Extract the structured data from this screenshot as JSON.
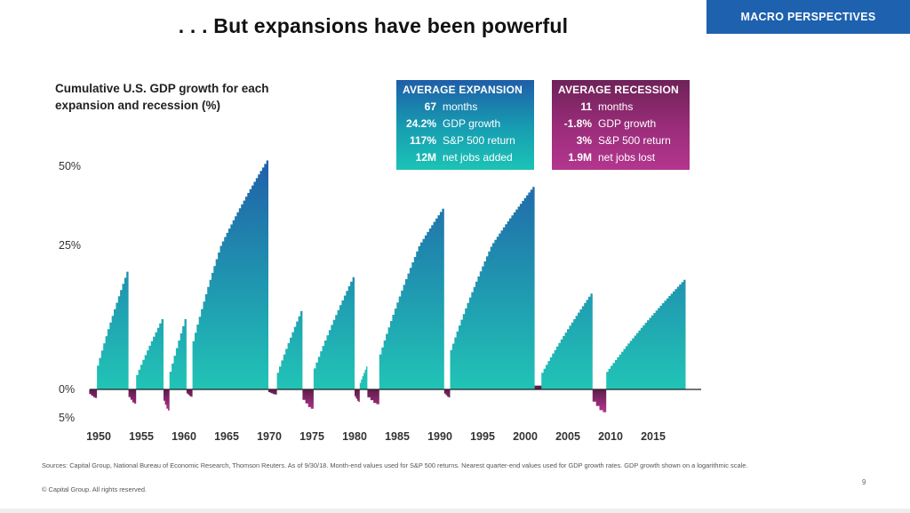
{
  "title": ". . . But expansions have been powerful",
  "brand": "MACRO PERSPECTIVES",
  "page_number": "9",
  "footnote": "Sources: Capital Group, National Bureau of Economic Research, Thomson Reuters. As of 9/30/18. Month-end values used for S&P 500 returns. Nearest quarter-end values used for GDP growth rates. GDP growth shown on a logarithmic scale.",
  "copyright": "© Capital Group. All rights reserved.",
  "expansion_box": {
    "heading": "AVERAGE EXPANSION",
    "rows": [
      {
        "value": "67",
        "label": "months"
      },
      {
        "value": "24.2%",
        "label": "GDP growth"
      },
      {
        "value": "117%",
        "label": "S&P 500 return"
      },
      {
        "value": "12M",
        "label": "net jobs added"
      }
    ]
  },
  "recession_box": {
    "heading": "AVERAGE RECESSION",
    "rows": [
      {
        "value": "11",
        "label": "months"
      },
      {
        "value": "-1.8%",
        "label": "GDP growth"
      },
      {
        "value": "3%",
        "label": "S&P 500 return"
      },
      {
        "value": "1.9M",
        "label": "net jobs lost"
      }
    ]
  },
  "colors": {
    "expansion_top": "#1f5ea8",
    "expansion_bottom": "#21c4b6",
    "recession_top": "#5e1c4c",
    "recession_bottom": "#b0358a",
    "brand": "#1e61ae"
  },
  "chart_data": {
    "type": "area",
    "subtitle": "Cumulative U.S. GDP growth for each expansion and recession (%)",
    "scale": "log",
    "ylim": [
      -5,
      50
    ],
    "y_ticks": [
      {
        "value": 50,
        "label": "50%"
      },
      {
        "value": 25,
        "label": "25%"
      },
      {
        "value": 0,
        "label": "0%"
      },
      {
        "value": -5,
        "label": "5%"
      }
    ],
    "x_ticks": [
      1950,
      1955,
      1960,
      1965,
      1970,
      1975,
      1980,
      1985,
      1990,
      1995,
      2000,
      2005,
      2010,
      2015
    ],
    "xlim": [
      1948,
      2020
    ],
    "axis_note": "time in years",
    "expansions": [
      {
        "start": 1949.8,
        "end": 1953.5,
        "peak": 20.0
      },
      {
        "start": 1954.4,
        "end": 1957.6,
        "peak": 11.5
      },
      {
        "start": 1958.3,
        "end": 1960.3,
        "peak": 11.5
      },
      {
        "start": 1961.0,
        "end": 1969.9,
        "peak": 52.0
      },
      {
        "start": 1970.9,
        "end": 1973.9,
        "peak": 12.9
      },
      {
        "start": 1975.2,
        "end": 1980.0,
        "peak": 19.0
      },
      {
        "start": 1980.6,
        "end": 1981.5,
        "peak": 3.6
      },
      {
        "start": 1982.9,
        "end": 1990.5,
        "peak": 36.0
      },
      {
        "start": 1991.2,
        "end": 2001.1,
        "peak": 43.0
      },
      {
        "start": 2001.9,
        "end": 2007.9,
        "peak": 16.0
      },
      {
        "start": 2009.5,
        "end": 2018.8,
        "peak": 18.5
      }
    ],
    "recessions": [
      {
        "start": 1948.9,
        "end": 1949.8,
        "trough": -1.5
      },
      {
        "start": 1953.5,
        "end": 1954.4,
        "trough": -2.5
      },
      {
        "start": 1957.6,
        "end": 1958.3,
        "trough": -3.7
      },
      {
        "start": 1960.3,
        "end": 1961.0,
        "trough": -1.3
      },
      {
        "start": 1969.9,
        "end": 1970.9,
        "trough": -0.9
      },
      {
        "start": 1973.9,
        "end": 1975.2,
        "trough": -3.4
      },
      {
        "start": 1980.0,
        "end": 1980.6,
        "trough": -2.2
      },
      {
        "start": 1981.5,
        "end": 1982.9,
        "trough": -2.6
      },
      {
        "start": 1990.5,
        "end": 1991.2,
        "trough": -1.4
      },
      {
        "start": 2001.1,
        "end": 2001.9,
        "trough": 0.6
      },
      {
        "start": 2007.9,
        "end": 2009.5,
        "trough": -4.0
      }
    ]
  }
}
